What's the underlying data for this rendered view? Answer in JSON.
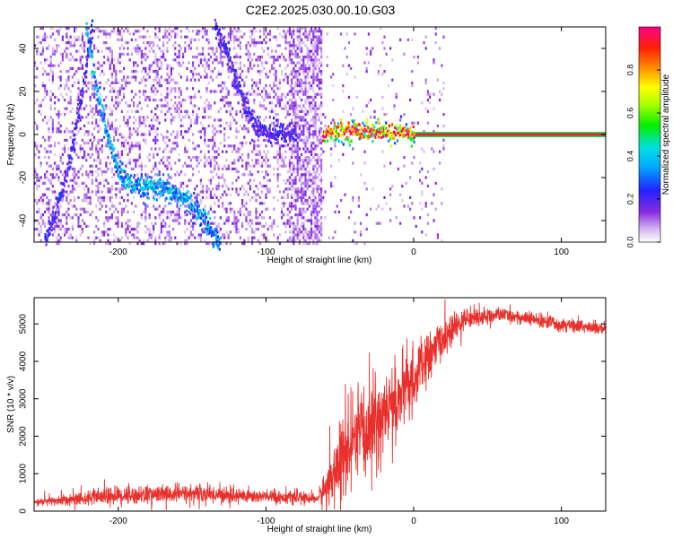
{
  "title": "C2E2.2025.030.00.10.G03",
  "chart_data": [
    {
      "type": "heatmap",
      "xlabel": "Height of straight line (km)",
      "ylabel": "Frequency (Hz)",
      "xlim": [
        -257,
        130
      ],
      "ylim": [
        -50,
        50
      ],
      "xticks": [
        -200,
        -100,
        0,
        100
      ],
      "yticks": [
        -40,
        -20,
        0,
        20,
        40
      ],
      "colorbar": {
        "label": "Normalized spectral amplitude",
        "range": [
          0,
          1
        ],
        "ticks": [
          0.0,
          0.2,
          0.4,
          0.6,
          0.8
        ]
      },
      "features": [
        {
          "name": "rising-ridge",
          "points": [
            [
              -250,
              -50
            ],
            [
              -240,
              -30
            ],
            [
              -232,
              -8
            ],
            [
              -226,
              15
            ],
            [
              -221,
              38
            ],
            [
              -218,
              50
            ]
          ],
          "level": 0.2
        },
        {
          "name": "falling-ridge",
          "points": [
            [
              -222,
              48
            ],
            [
              -215,
              20
            ],
            [
              -208,
              0
            ],
            [
              -200,
              -18
            ],
            [
              -190,
              -25
            ],
            [
              -175,
              -25
            ],
            [
              -160,
              -28
            ],
            [
              -150,
              -33
            ],
            [
              -140,
              -42
            ],
            [
              -132,
              -50
            ]
          ],
          "level": 0.35
        },
        {
          "name": "upper-ridge",
          "points": [
            [
              -135,
              50
            ],
            [
              -125,
              35
            ],
            [
              -117,
              18
            ],
            [
              -110,
              6
            ],
            [
              -100,
              1
            ],
            [
              -80,
              0
            ]
          ],
          "level": 0.2
        },
        {
          "name": "carrier",
          "points": [
            [
              -62,
              0
            ],
            [
              -40,
              2
            ],
            [
              -20,
              1
            ],
            [
              0,
              0
            ],
            [
              130,
              0
            ]
          ],
          "level": 0.9
        }
      ]
    },
    {
      "type": "line",
      "xlabel": "Height of straight line (km)",
      "ylabel": "SNR (10 * v/v)",
      "xlim": [
        -257,
        130
      ],
      "ylim": [
        0,
        5700
      ],
      "xticks": [
        -200,
        -100,
        0,
        100
      ],
      "yticks": [
        0,
        1000,
        2000,
        3000,
        4000,
        5000
      ],
      "color": "#e8302c",
      "envelope": [
        {
          "x": -257,
          "mean": 230,
          "noise": 90
        },
        {
          "x": -200,
          "mean": 420,
          "noise": 230
        },
        {
          "x": -150,
          "mean": 470,
          "noise": 220
        },
        {
          "x": -100,
          "mean": 380,
          "noise": 170
        },
        {
          "x": -80,
          "mean": 360,
          "noise": 150
        },
        {
          "x": -65,
          "mean": 330,
          "noise": 120
        },
        {
          "x": -60,
          "mean": 600,
          "noise": 500
        },
        {
          "x": -50,
          "mean": 1300,
          "noise": 900
        },
        {
          "x": -40,
          "mean": 1800,
          "noise": 1100
        },
        {
          "x": -30,
          "mean": 2200,
          "noise": 1200
        },
        {
          "x": -15,
          "mean": 2800,
          "noise": 900
        },
        {
          "x": 0,
          "mean": 3500,
          "noise": 800
        },
        {
          "x": 15,
          "mean": 4400,
          "noise": 500
        },
        {
          "x": 35,
          "mean": 5150,
          "noise": 250
        },
        {
          "x": 60,
          "mean": 5250,
          "noise": 160
        },
        {
          "x": 90,
          "mean": 5050,
          "noise": 180
        },
        {
          "x": 130,
          "mean": 4850,
          "noise": 170
        }
      ]
    }
  ]
}
